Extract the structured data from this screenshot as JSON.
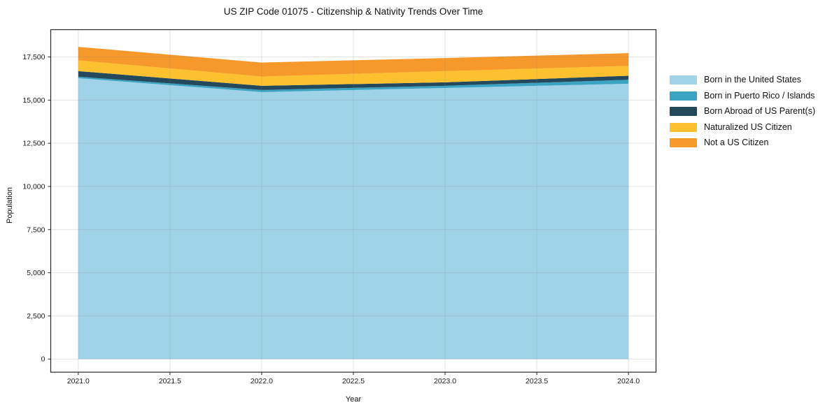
{
  "chart_data": {
    "type": "area",
    "stacked": true,
    "title": "US ZIP Code 01075 - Citizenship & Nativity Trends Over Time",
    "xlabel": "Year",
    "ylabel": "Population",
    "x": [
      2021,
      2022,
      2023,
      2024
    ],
    "series": [
      {
        "name": "Born in the United States",
        "color": "#a1d3e8",
        "values": [
          16270,
          15465,
          15705,
          15950
        ]
      },
      {
        "name": "Born in Puerto Rico / Islands",
        "color": "#3aa4c2",
        "values": [
          85,
          120,
          125,
          230
        ]
      },
      {
        "name": "Born Abroad of US Parent(s)",
        "color": "#24485c",
        "values": [
          325,
          245,
          200,
          230
        ]
      },
      {
        "name": "Naturalized US Citizen",
        "color": "#fdc12f",
        "values": [
          620,
          535,
          650,
          570
        ]
      },
      {
        "name": "Not a US Citizen",
        "color": "#f7982a",
        "values": [
          785,
          810,
          755,
          740
        ]
      }
    ],
    "totals_by_year": [
      18085,
      17175,
      17435,
      17720
    ],
    "xlim": [
      2020.85,
      2024.15
    ],
    "ylim": [
      -760,
      19080
    ],
    "xticks": {
      "values": [
        2021.0,
        2021.5,
        2022.0,
        2022.5,
        2023.0,
        2023.5,
        2024.0
      ],
      "labels": [
        "2021.0",
        "2021.5",
        "2022.0",
        "2022.5",
        "2023.0",
        "2023.5",
        "2024.0"
      ]
    },
    "yticks": {
      "values": [
        0,
        2500,
        5000,
        7500,
        10000,
        12500,
        15000,
        17500
      ],
      "labels": [
        "0",
        "2,500",
        "5,000",
        "7,500",
        "10,000",
        "12,500",
        "15,000",
        "17,500"
      ]
    },
    "grid": true,
    "legend_position": "right",
    "colors": {
      "spine": "#262626",
      "grid": "rgba(130,130,130,0.22)",
      "background": "#ffffff"
    }
  }
}
